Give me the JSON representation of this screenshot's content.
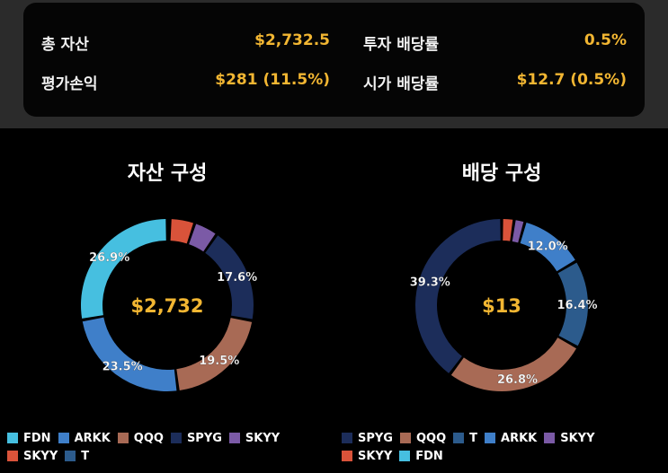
{
  "summary": {
    "total_assets_label": "총 자산",
    "total_assets_value": "$2,732.5",
    "invest_yield_label": "투자 배당률",
    "invest_yield_value": "0.5%",
    "pnl_label": "평가손익",
    "pnl_value": "$281 (11.5%)",
    "market_yield_label": "시가 배당률",
    "market_yield_value": "$12.7 (0.5%)"
  },
  "colors": {
    "accent": "#f2b632",
    "FDN": "#46bfe0",
    "ARKK": "#3f7fc9",
    "QQQ": "#a86a55",
    "SPYG": "#1c2d5a",
    "SKYY_purple": "#7b5aa6",
    "SKYY_red": "#d9533a",
    "T": "#2c5b8c"
  },
  "chart_data": [
    {
      "type": "pie",
      "title": "자산 구성",
      "center_label": "$2,732",
      "slices": [
        {
          "name": "T",
          "value": 0.5,
          "color": "#2c5b8c",
          "label": ""
        },
        {
          "name": "SKYY",
          "value": 4.5,
          "color": "#d9533a",
          "label": ""
        },
        {
          "name": "SKYY",
          "value": 4.4,
          "color": "#7b5aa6",
          "label": ""
        },
        {
          "name": "SPYG",
          "value": 17.6,
          "color": "#1c2d5a",
          "label": "17.6%"
        },
        {
          "name": "QQQ",
          "value": 19.5,
          "color": "#a86a55",
          "label": "19.5%"
        },
        {
          "name": "ARKK",
          "value": 23.5,
          "color": "#3f7fc9",
          "label": "23.5%"
        },
        {
          "name": "FDN",
          "value": 26.9,
          "color": "#46bfe0",
          "label": "26.9%"
        }
      ],
      "legend": [
        [
          {
            "name": "FDN",
            "color": "#46bfe0"
          },
          {
            "name": "ARKK",
            "color": "#3f7fc9"
          },
          {
            "name": "QQQ",
            "color": "#a86a55"
          },
          {
            "name": "SPYG",
            "color": "#1c2d5a"
          },
          {
            "name": "SKYY",
            "color": "#7b5aa6"
          }
        ],
        [
          {
            "name": "SKYY",
            "color": "#d9533a"
          },
          {
            "name": "T",
            "color": "#2c5b8c"
          }
        ]
      ]
    },
    {
      "type": "pie",
      "title": "배당 구성",
      "center_label": "$13",
      "slices": [
        {
          "name": "SKYY",
          "value": 2.3,
          "color": "#d9533a",
          "label": ""
        },
        {
          "name": "SKYY",
          "value": 2.0,
          "color": "#7b5aa6",
          "label": ""
        },
        {
          "name": "ARKK",
          "value": 12.0,
          "color": "#3f7fc9",
          "label": "12.0%"
        },
        {
          "name": "T",
          "value": 16.4,
          "color": "#2c5b8c",
          "label": "16.4%"
        },
        {
          "name": "QQQ",
          "value": 26.8,
          "color": "#a86a55",
          "label": "26.8%"
        },
        {
          "name": "SPYG",
          "value": 39.3,
          "color": "#1c2d5a",
          "label": "39.3%"
        }
      ],
      "legend": [
        [
          {
            "name": "SPYG",
            "color": "#1c2d5a"
          },
          {
            "name": "QQQ",
            "color": "#a86a55"
          },
          {
            "name": "T",
            "color": "#2c5b8c"
          },
          {
            "name": "ARKK",
            "color": "#3f7fc9"
          },
          {
            "name": "SKYY",
            "color": "#7b5aa6"
          }
        ],
        [
          {
            "name": "SKYY",
            "color": "#d9533a"
          },
          {
            "name": "FDN",
            "color": "#46bfe0"
          }
        ]
      ]
    }
  ]
}
